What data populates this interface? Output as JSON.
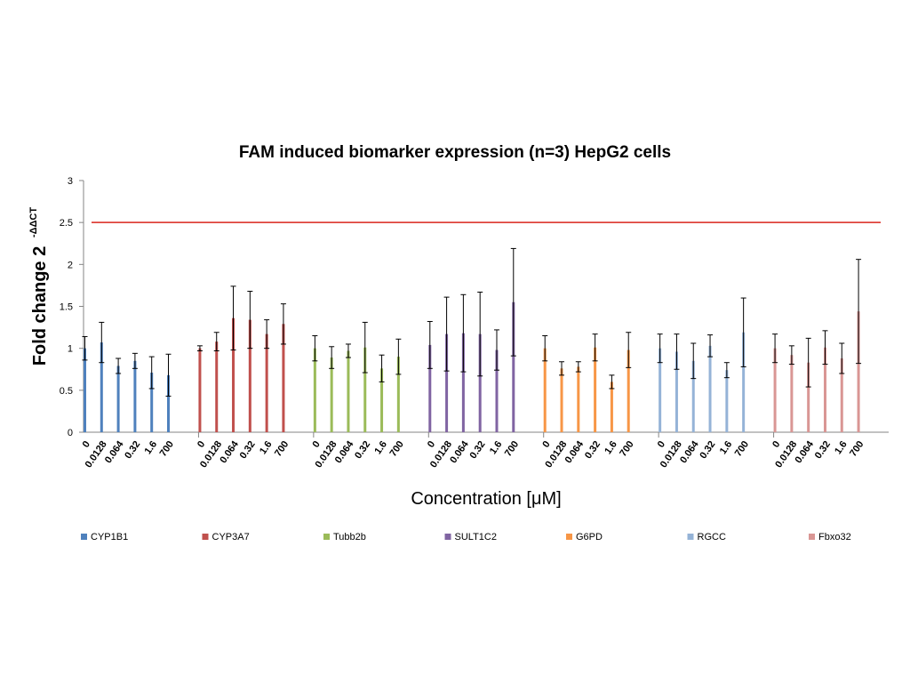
{
  "chart_data": {
    "type": "bar",
    "title": "FAM induced biomarker expression (n=3) HepG2 cells",
    "xlabel": "Concentration [μM]",
    "ylabel": "Fold change 2",
    "ylabel_superscript": "-ΔΔCT",
    "ylim": [
      0,
      3
    ],
    "yticks": [
      "0",
      "0.5",
      "1",
      "1.5",
      "2",
      "2.5",
      "3"
    ],
    "threshold_line": {
      "value": 2.5,
      "color": "#d9251c"
    },
    "grid": false,
    "legend_position": "bottom",
    "categories": [
      "0",
      "0.0128",
      "0.064",
      "0.32",
      "1.6",
      "700"
    ],
    "series": [
      {
        "name": "CYP1B1",
        "color": "#4f81bd",
        "values": [
          1.0,
          1.07,
          0.79,
          0.85,
          0.71,
          0.68
        ],
        "errors": [
          0.14,
          0.24,
          0.09,
          0.09,
          0.19,
          0.25
        ]
      },
      {
        "name": "CYP3A7",
        "color": "#c0504d",
        "values": [
          1.0,
          1.08,
          1.36,
          1.34,
          1.17,
          1.29
        ],
        "errors": [
          0.03,
          0.11,
          0.38,
          0.34,
          0.17,
          0.24
        ]
      },
      {
        "name": "Tubb2b",
        "color": "#9bbb59",
        "values": [
          1.0,
          0.89,
          0.97,
          1.01,
          0.76,
          0.9
        ],
        "errors": [
          0.15,
          0.13,
          0.08,
          0.3,
          0.16,
          0.21
        ]
      },
      {
        "name": "SULT1C2",
        "color": "#8064a2",
        "values": [
          1.04,
          1.17,
          1.18,
          1.17,
          0.98,
          1.55
        ],
        "errors": [
          0.28,
          0.44,
          0.46,
          0.5,
          0.24,
          0.64
        ]
      },
      {
        "name": "G6PD",
        "color": "#f79646",
        "values": [
          1.0,
          0.76,
          0.78,
          1.01,
          0.6,
          0.98
        ],
        "errors": [
          0.15,
          0.08,
          0.06,
          0.16,
          0.08,
          0.21
        ]
      },
      {
        "name": "RGCC",
        "color": "#95b3d7",
        "values": [
          1.0,
          0.96,
          0.85,
          1.03,
          0.74,
          1.19
        ],
        "errors": [
          0.17,
          0.21,
          0.21,
          0.13,
          0.09,
          0.41
        ]
      },
      {
        "name": "Fbxo32",
        "color": "#d99694",
        "values": [
          1.0,
          0.92,
          0.83,
          1.01,
          0.88,
          1.44
        ],
        "errors": [
          0.17,
          0.11,
          0.29,
          0.2,
          0.18,
          0.62
        ]
      }
    ]
  }
}
